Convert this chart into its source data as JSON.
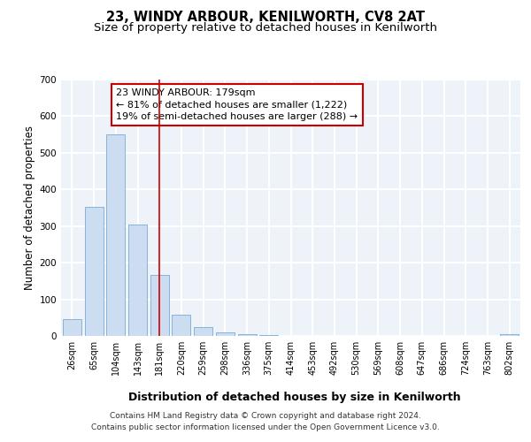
{
  "title1": "23, WINDY ARBOUR, KENILWORTH, CV8 2AT",
  "title2": "Size of property relative to detached houses in Kenilworth",
  "xlabel": "Distribution of detached houses by size in Kenilworth",
  "ylabel": "Number of detached properties",
  "bar_values": [
    45,
    352,
    551,
    305,
    167,
    59,
    24,
    10,
    4,
    2,
    1,
    0,
    0,
    0,
    0,
    0,
    0,
    0,
    0,
    0,
    4
  ],
  "bar_labels": [
    "26sqm",
    "65sqm",
    "104sqm",
    "143sqm",
    "181sqm",
    "220sqm",
    "259sqm",
    "298sqm",
    "336sqm",
    "375sqm",
    "414sqm",
    "453sqm",
    "492sqm",
    "530sqm",
    "569sqm",
    "608sqm",
    "647sqm",
    "686sqm",
    "724sqm",
    "763sqm",
    "802sqm"
  ],
  "bar_color": "#ccddf2",
  "bar_edgecolor": "#7aaad4",
  "vline_x_index": 4,
  "vline_color": "#cc0000",
  "annotation_text": "23 WINDY ARBOUR: 179sqm\n← 81% of detached houses are smaller (1,222)\n19% of semi-detached houses are larger (288) →",
  "annotation_box_edgecolor": "#cc0000",
  "annotation_box_facecolor": "white",
  "ylim": [
    0,
    700
  ],
  "yticks": [
    0,
    100,
    200,
    300,
    400,
    500,
    600,
    700
  ],
  "footer_line1": "Contains HM Land Registry data © Crown copyright and database right 2024.",
  "footer_line2": "Contains public sector information licensed under the Open Government Licence v3.0.",
  "bg_color": "#eef2f9",
  "grid_color": "white",
  "title1_fontsize": 10.5,
  "title2_fontsize": 9.5,
  "tick_fontsize": 7,
  "ylabel_fontsize": 8.5,
  "xlabel_fontsize": 9,
  "annotation_fontsize": 8,
  "footer_fontsize": 6.5
}
